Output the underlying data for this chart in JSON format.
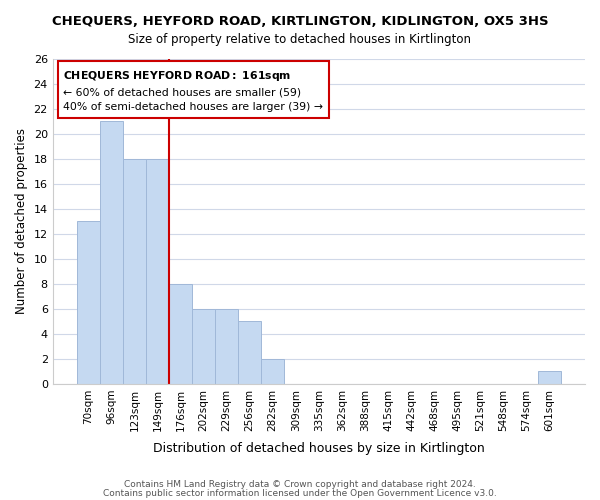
{
  "title": "CHEQUERS, HEYFORD ROAD, KIRTLINGTON, KIDLINGTON, OX5 3HS",
  "subtitle": "Size of property relative to detached houses in Kirtlington",
  "xlabel": "Distribution of detached houses by size in Kirtlington",
  "ylabel": "Number of detached properties",
  "bar_labels": [
    "70sqm",
    "96sqm",
    "123sqm",
    "149sqm",
    "176sqm",
    "202sqm",
    "229sqm",
    "256sqm",
    "282sqm",
    "309sqm",
    "335sqm",
    "362sqm",
    "388sqm",
    "415sqm",
    "442sqm",
    "468sqm",
    "495sqm",
    "521sqm",
    "548sqm",
    "574sqm",
    "601sqm"
  ],
  "bar_values": [
    13,
    21,
    18,
    18,
    8,
    6,
    6,
    5,
    2,
    0,
    0,
    0,
    0,
    0,
    0,
    0,
    0,
    0,
    0,
    0,
    1
  ],
  "bar_color": "#c5d9f1",
  "bar_edge_color": "#a0b8d8",
  "vline_x": 3,
  "vline_color": "#cc0000",
  "ylim": [
    0,
    26
  ],
  "yticks": [
    0,
    2,
    4,
    6,
    8,
    10,
    12,
    14,
    16,
    18,
    20,
    22,
    24,
    26
  ],
  "annotation_title": "CHEQUERS HEYFORD ROAD: 161sqm",
  "annotation_line1": "← 60% of detached houses are smaller (59)",
  "annotation_line2": "40% of semi-detached houses are larger (39) →",
  "annotation_box_color": "#ffffff",
  "annotation_box_edge": "#cc0000",
  "footer_line1": "Contains HM Land Registry data © Crown copyright and database right 2024.",
  "footer_line2": "Contains public sector information licensed under the Open Government Licence v3.0.",
  "grid_color": "#d0d8e8",
  "background_color": "#ffffff"
}
